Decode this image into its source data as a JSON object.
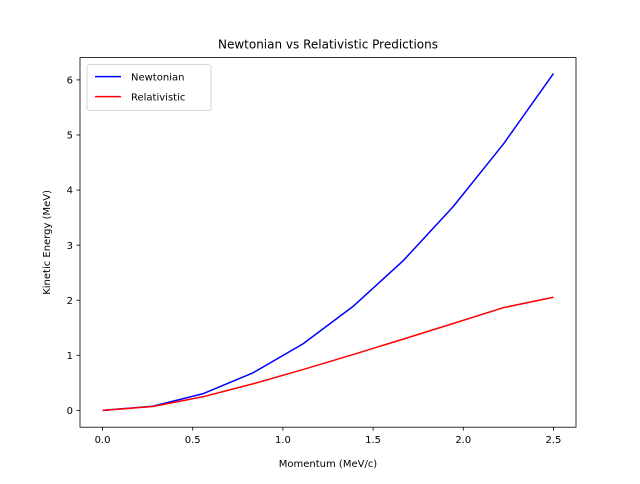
{
  "chart_data": {
    "type": "line",
    "title": "Newtonian vs Relativistic Predictions",
    "xlabel": "Momentum (MeV/c)",
    "ylabel": "Kinetic Energy (MeV)",
    "xlim": [
      -0.125,
      2.625
    ],
    "ylim": [
      -0.305,
      6.405
    ],
    "xticks": [
      0.0,
      0.5,
      1.0,
      1.5,
      2.0,
      2.5
    ],
    "xtick_labels": [
      "0.0",
      "0.5",
      "1.0",
      "1.5",
      "2.0",
      "2.5"
    ],
    "yticks": [
      0,
      1,
      2,
      3,
      4,
      5,
      6
    ],
    "ytick_labels": [
      "0",
      "1",
      "2",
      "3",
      "4",
      "5",
      "6"
    ],
    "grid": false,
    "legend_position": "top-left",
    "x": [
      0.0,
      0.278,
      0.556,
      0.833,
      1.111,
      1.389,
      1.667,
      1.944,
      2.222,
      2.5
    ],
    "series": [
      {
        "name": "Newtonian",
        "color": "#0000ff",
        "values": [
          0.0,
          0.076,
          0.302,
          0.68,
          1.208,
          1.888,
          2.718,
          3.7,
          4.833,
          6.116
        ]
      },
      {
        "name": "Relativistic",
        "color": "#ff0000",
        "values": [
          0.0,
          0.07,
          0.247,
          0.481,
          0.741,
          1.014,
          1.294,
          1.578,
          1.865,
          2.054
        ]
      }
    ]
  }
}
